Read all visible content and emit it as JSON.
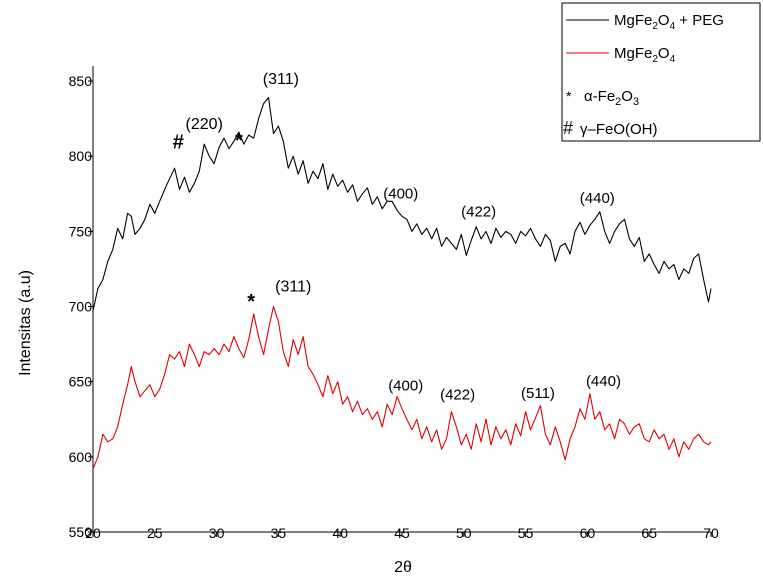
{
  "chart_data": {
    "type": "line",
    "xlabel": "2θ",
    "ylabel": "Intensitas (a.u)",
    "xlim": [
      20,
      70
    ],
    "ylim": [
      550,
      860
    ],
    "xticks": [
      "20",
      "25",
      "30",
      "35",
      "40",
      "45",
      "50",
      "55",
      "60",
      "65",
      "70"
    ],
    "yticks": [
      "550",
      "600",
      "650",
      "700",
      "750",
      "800",
      "850"
    ],
    "series": [
      {
        "name": "MgFe2O4 + PEG",
        "color": "#000000",
        "x": [
          20.0,
          20.4,
          20.8,
          21.2,
          21.6,
          22.0,
          22.4,
          22.8,
          23.1,
          23.4,
          23.8,
          24.2,
          24.6,
          25.0,
          25.4,
          25.8,
          26.2,
          26.6,
          27.0,
          27.4,
          27.8,
          28.2,
          28.6,
          29.0,
          29.4,
          29.8,
          30.2,
          30.6,
          31.0,
          31.4,
          31.8,
          32.2,
          32.6,
          33.0,
          33.4,
          33.8,
          34.2,
          34.6,
          35.0,
          35.4,
          35.8,
          36.2,
          36.6,
          37.0,
          37.4,
          37.8,
          38.2,
          38.6,
          39.0,
          39.4,
          39.8,
          40.2,
          40.6,
          41.0,
          41.4,
          41.8,
          42.2,
          42.6,
          43.0,
          43.4,
          43.8,
          44.2,
          44.6,
          45.0,
          45.4,
          45.8,
          46.2,
          46.6,
          47.0,
          47.4,
          47.8,
          48.2,
          48.6,
          49.0,
          49.4,
          49.8,
          50.2,
          50.6,
          51.0,
          51.4,
          51.8,
          52.2,
          52.6,
          53.0,
          53.4,
          53.8,
          54.2,
          54.6,
          55.0,
          55.4,
          55.8,
          56.2,
          56.6,
          57.0,
          57.4,
          57.8,
          58.2,
          58.6,
          59.0,
          59.4,
          59.8,
          60.2,
          60.6,
          61.0,
          61.4,
          61.8,
          62.2,
          62.6,
          63.0,
          63.4,
          63.8,
          64.2,
          64.6,
          65.0,
          65.4,
          65.8,
          66.2,
          66.6,
          67.0,
          67.4,
          67.8,
          68.2,
          68.6,
          69.0,
          69.4,
          69.8,
          70.0
        ],
        "y": [
          697,
          712,
          718,
          730,
          738,
          752,
          745,
          762,
          760,
          748,
          752,
          758,
          768,
          762,
          770,
          778,
          785,
          792,
          778,
          786,
          776,
          782,
          790,
          808,
          800,
          795,
          806,
          812,
          805,
          810,
          816,
          808,
          814,
          812,
          825,
          835,
          839,
          815,
          820,
          810,
          792,
          800,
          788,
          797,
          782,
          790,
          785,
          795,
          778,
          788,
          780,
          784,
          776,
          781,
          770,
          775,
          779,
          768,
          773,
          765,
          770,
          770,
          764,
          760,
          758,
          750,
          755,
          748,
          752,
          745,
          752,
          740,
          746,
          742,
          738,
          748,
          734,
          744,
          753,
          745,
          750,
          742,
          752,
          746,
          750,
          748,
          742,
          750,
          747,
          752,
          745,
          740,
          748,
          744,
          730,
          740,
          742,
          735,
          750,
          756,
          748,
          754,
          758,
          763,
          750,
          742,
          750,
          755,
          758,
          745,
          740,
          746,
          730,
          735,
          728,
          722,
          730,
          725,
          728,
          718,
          725,
          722,
          732,
          735,
          718,
          703,
          712
        ]
      },
      {
        "name": "MgFe2O4",
        "color": "#e00000",
        "x": [
          20.0,
          20.4,
          20.8,
          21.2,
          21.6,
          22.0,
          22.4,
          22.8,
          23.1,
          23.4,
          23.8,
          24.2,
          24.6,
          25.0,
          25.4,
          25.8,
          26.2,
          26.6,
          27.0,
          27.4,
          27.8,
          28.2,
          28.6,
          29.0,
          29.4,
          29.8,
          30.2,
          30.6,
          31.0,
          31.4,
          31.8,
          32.2,
          32.6,
          33.0,
          33.4,
          33.8,
          34.2,
          34.6,
          35.0,
          35.4,
          35.8,
          36.2,
          36.6,
          37.0,
          37.4,
          37.8,
          38.2,
          38.6,
          39.0,
          39.4,
          39.8,
          40.2,
          40.6,
          41.0,
          41.4,
          41.8,
          42.2,
          42.6,
          43.0,
          43.4,
          43.8,
          44.2,
          44.6,
          45.0,
          45.4,
          45.8,
          46.2,
          46.6,
          47.0,
          47.4,
          47.8,
          48.2,
          48.6,
          49.0,
          49.4,
          49.8,
          50.2,
          50.6,
          51.0,
          51.4,
          51.8,
          52.2,
          52.6,
          53.0,
          53.4,
          53.8,
          54.2,
          54.6,
          55.0,
          55.4,
          55.8,
          56.2,
          56.6,
          57.0,
          57.4,
          57.8,
          58.2,
          58.6,
          59.0,
          59.4,
          59.8,
          60.2,
          60.6,
          61.0,
          61.4,
          61.8,
          62.2,
          62.6,
          63.0,
          63.4,
          63.8,
          64.2,
          64.6,
          65.0,
          65.4,
          65.8,
          66.2,
          66.6,
          67.0,
          67.4,
          67.8,
          68.2,
          68.6,
          69.0,
          69.4,
          69.8,
          70.0
        ],
        "y": [
          592,
          600,
          615,
          610,
          612,
          620,
          635,
          648,
          660,
          650,
          640,
          644,
          648,
          640,
          645,
          655,
          668,
          665,
          670,
          660,
          675,
          668,
          660,
          670,
          668,
          672,
          668,
          675,
          670,
          680,
          672,
          666,
          678,
          695,
          680,
          668,
          685,
          700,
          690,
          670,
          660,
          678,
          668,
          680,
          660,
          655,
          648,
          640,
          654,
          642,
          650,
          635,
          640,
          630,
          637,
          628,
          632,
          625,
          630,
          620,
          635,
          628,
          640,
          632,
          625,
          618,
          625,
          612,
          620,
          610,
          618,
          605,
          612,
          630,
          620,
          608,
          615,
          605,
          622,
          610,
          625,
          608,
          620,
          612,
          618,
          608,
          622,
          614,
          630,
          618,
          626,
          634,
          615,
          608,
          620,
          610,
          598,
          612,
          620,
          632,
          625,
          642,
          625,
          630,
          618,
          622,
          612,
          625,
          622,
          615,
          620,
          622,
          612,
          610,
          618,
          612,
          615,
          605,
          612,
          600,
          610,
          605,
          612,
          615,
          610,
          608,
          610
        ]
      }
    ],
    "annotations": {
      "black": [
        {
          "text": "#",
          "x": 26.9,
          "y": 805,
          "style": "sym"
        },
        {
          "text": "(220)",
          "x": 29.0,
          "y": 818,
          "style": "peak-big"
        },
        {
          "text": "*",
          "x": 31.8,
          "y": 806,
          "style": "sym"
        },
        {
          "text": "(311)",
          "x": 35.2,
          "y": 848,
          "style": "peak-big"
        },
        {
          "text": "(400)",
          "x": 44.9,
          "y": 772,
          "style": "peak"
        },
        {
          "text": "(422)",
          "x": 51.2,
          "y": 760,
          "style": "peak"
        },
        {
          "text": "(440)",
          "x": 60.8,
          "y": 769,
          "style": "peak"
        }
      ],
      "red": [
        {
          "text": "*",
          "x": 32.8,
          "y": 699,
          "style": "sym"
        },
        {
          "text": "(311)",
          "x": 36.2,
          "y": 710,
          "style": "peak-big"
        },
        {
          "text": "(400)",
          "x": 45.3,
          "y": 644,
          "style": "peak"
        },
        {
          "text": "(422)",
          "x": 49.5,
          "y": 638,
          "style": "peak"
        },
        {
          "text": "(511)",
          "x": 56.0,
          "y": 639,
          "style": "peak"
        },
        {
          "text": "(440)",
          "x": 61.3,
          "y": 647,
          "style": "peak"
        }
      ]
    },
    "legend": {
      "position": "top-right",
      "entries": [
        {
          "label": "MgFe₂O₄ + PEG",
          "color": "#000000"
        },
        {
          "label": "MgFe₂O₄",
          "color": "#e00000"
        }
      ],
      "notes": [
        {
          "symbol": "*",
          "label": "α-Fe₂O₃"
        },
        {
          "symbol": "#",
          "label": "γ–FeO(OH)"
        }
      ]
    }
  }
}
